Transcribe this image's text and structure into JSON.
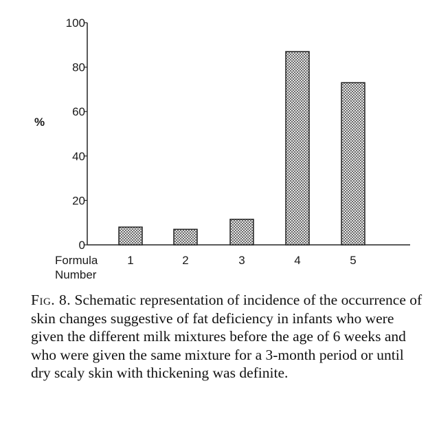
{
  "chart_data": {
    "type": "bar",
    "title": "",
    "ylabel": "%",
    "xlabel": "Formula Number",
    "xlabel_lines": [
      "Formula",
      "Number"
    ],
    "categories": [
      "1",
      "2",
      "3",
      "4",
      "5"
    ],
    "values": [
      8,
      7,
      11.5,
      87,
      73
    ],
    "ylim": [
      0,
      100
    ],
    "yticks": [
      "0",
      "20",
      "40",
      "60",
      "80",
      "100"
    ],
    "grid": false,
    "legend": "none",
    "bar_fill": "#9a9a9a",
    "bar_stroke": "#222222"
  },
  "caption": {
    "lead": "Fig. 8.",
    "text": "Schematic representation of incidence of the occurrence of skin changes suggestive of fat deficiency in infants who were given the different milk mixtures before the age of 6 weeks and who were given the same mixture for a 3-month period or until dry scaly skin with thickening was definite."
  }
}
